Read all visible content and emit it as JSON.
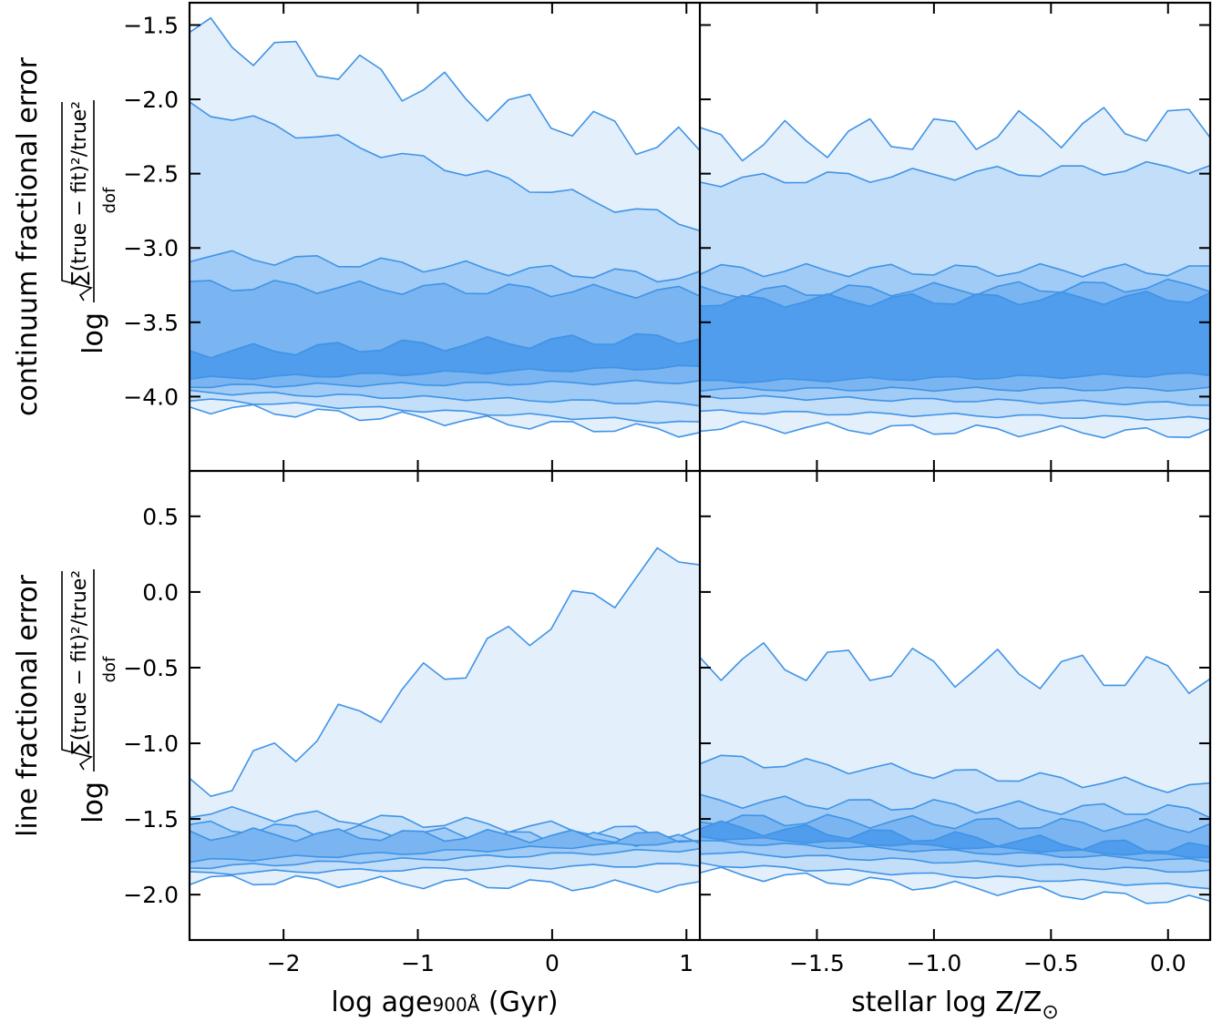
{
  "figure": {
    "colors": {
      "contour_fill": [
        "#e3f0fc",
        "#c3def9",
        "#9fcbf6",
        "#7ab5f1",
        "#509ced",
        "#2b86ea"
      ],
      "contour_line": "#3f93e6",
      "axes": "#000000"
    }
  },
  "chart_data": [
    {
      "type": "contour",
      "panel": "top-left",
      "xlabel": "",
      "ylabel_title": "continuum fractional error",
      "ylabel_expr_prefix": "log",
      "ylabel_expr_numerator": "∑(true − fit)²/true²",
      "ylabel_expr_denominator": "dof",
      "xlim": [
        -2.7,
        1.1
      ],
      "ylim": [
        -4.5,
        -1.35
      ],
      "yticks": [
        -1.5,
        -2.0,
        -2.5,
        -3.0,
        -3.5,
        -4.0
      ],
      "ytick_labels": [
        "−1.5",
        "−2.0",
        "−2.5",
        "−3.0",
        "−3.5",
        "−4.0"
      ],
      "xticks": [
        -2,
        -1,
        0,
        1
      ],
      "contour_levels": [
        {
          "level": 1,
          "y_bottom_left": -4.07,
          "y_bottom_right": -4.24,
          "y_top_left": -1.55,
          "y_top_right": -2.35
        },
        {
          "level": 2,
          "y_bottom_left": -4.02,
          "y_bottom_right": -4.18,
          "y_top_left": -2.05,
          "y_top_right": -2.85
        },
        {
          "level": 3,
          "y_bottom_left": -3.97,
          "y_bottom_right": -4.05,
          "y_top_left": -3.05,
          "y_top_right": -3.2
        },
        {
          "level": 4,
          "y_bottom_left": -3.93,
          "y_bottom_right": -3.9,
          "y_top_left": -3.25,
          "y_top_right": -3.3
        },
        {
          "level": 5,
          "y_bottom_left": -3.88,
          "y_bottom_right": -3.8,
          "y_top_left": -3.7,
          "y_top_right": -3.6
        }
      ]
    },
    {
      "type": "contour",
      "panel": "top-right",
      "xlabel": "",
      "xlim": [
        -2.0,
        0.18
      ],
      "ylim": [
        -4.5,
        -1.35
      ],
      "xticks": [
        -1.5,
        -1.0,
        -0.5,
        0.0
      ],
      "contour_levels": [
        {
          "level": 1,
          "y_bottom_left": -4.2,
          "y_bottom_right": -4.25,
          "y_top_left": -2.3,
          "y_top_right": -2.15
        },
        {
          "level": 2,
          "y_bottom_left": -4.1,
          "y_bottom_right": -4.15,
          "y_top_left": -2.55,
          "y_top_right": -2.45
        },
        {
          "level": 3,
          "y_bottom_left": -4.0,
          "y_bottom_right": -4.05,
          "y_top_left": -3.15,
          "y_top_right": -3.15
        },
        {
          "level": 4,
          "y_bottom_left": -3.95,
          "y_bottom_right": -3.95,
          "y_top_left": -3.3,
          "y_top_right": -3.25
        },
        {
          "level": 5,
          "y_bottom_left": -3.9,
          "y_bottom_right": -3.85,
          "y_top_left": -3.36,
          "y_top_right": -3.33
        }
      ]
    },
    {
      "type": "contour",
      "panel": "bottom-left",
      "xlabel_prefix": "log age",
      "xlabel_sub": "900Å",
      "xlabel_suffix": " (Gyr)",
      "ylabel_title": "line fractional error",
      "ylabel_expr_prefix": "log",
      "ylabel_expr_numerator": "∑(true − fit)²/true²",
      "ylabel_expr_denominator": "dof",
      "xlim": [
        -2.7,
        1.1
      ],
      "ylim": [
        -2.3,
        0.8
      ],
      "yticks": [
        0.5,
        0.0,
        -0.5,
        -1.0,
        -1.5,
        -2.0
      ],
      "ytick_labels": [
        "0.5",
        "0.0",
        "−0.5",
        "−1.0",
        "−1.5",
        "−2.0"
      ],
      "xticks": [
        -2,
        -1,
        0,
        1
      ],
      "xtick_labels": [
        "−2",
        "−1",
        "0",
        "1"
      ],
      "contour_levels": [
        {
          "level": 1,
          "y_bottom_left": -1.9,
          "y_bottom_right": -1.95,
          "y_top_left": -1.35,
          "y_top_right": 0.3
        },
        {
          "level": 2,
          "y_bottom_left": -1.86,
          "y_bottom_right": -1.8,
          "y_top_left": -1.45,
          "y_top_right": -1.6
        },
        {
          "level": 3,
          "y_bottom_left": -1.82,
          "y_bottom_right": -1.7,
          "y_top_left": -1.55,
          "y_top_right": -1.65
        },
        {
          "level": 4,
          "y_bottom_left": -1.78,
          "y_bottom_right": -1.65,
          "y_top_left": -1.6,
          "y_top_right": -1.62
        }
      ]
    },
    {
      "type": "contour",
      "panel": "bottom-right",
      "xlabel_prefix": "stellar log Z/Z",
      "xlabel_symbol": "⊙",
      "xlim": [
        -2.0,
        0.18
      ],
      "ylim": [
        -2.3,
        0.8
      ],
      "xticks": [
        -1.5,
        -1.0,
        -0.5,
        0.0
      ],
      "xtick_labels": [
        "−1.5",
        "−1.0",
        "−0.5",
        "0.0"
      ],
      "contour_levels": [
        {
          "level": 1,
          "y_bottom_left": -1.85,
          "y_bottom_right": -2.05,
          "y_top_left": -0.45,
          "y_top_right": -0.55
        },
        {
          "level": 2,
          "y_bottom_left": -1.8,
          "y_bottom_right": -1.95,
          "y_top_left": -1.1,
          "y_top_right": -1.3
        },
        {
          "level": 3,
          "y_bottom_left": -1.72,
          "y_bottom_right": -1.85,
          "y_top_left": -1.38,
          "y_top_right": -1.45
        },
        {
          "level": 4,
          "y_bottom_left": -1.65,
          "y_bottom_right": -1.78,
          "y_top_left": -1.5,
          "y_top_right": -1.55
        },
        {
          "level": 5,
          "y_bottom_left": -1.62,
          "y_bottom_right": -1.75,
          "y_top_left": -1.55,
          "y_top_right": -1.7
        }
      ]
    }
  ]
}
